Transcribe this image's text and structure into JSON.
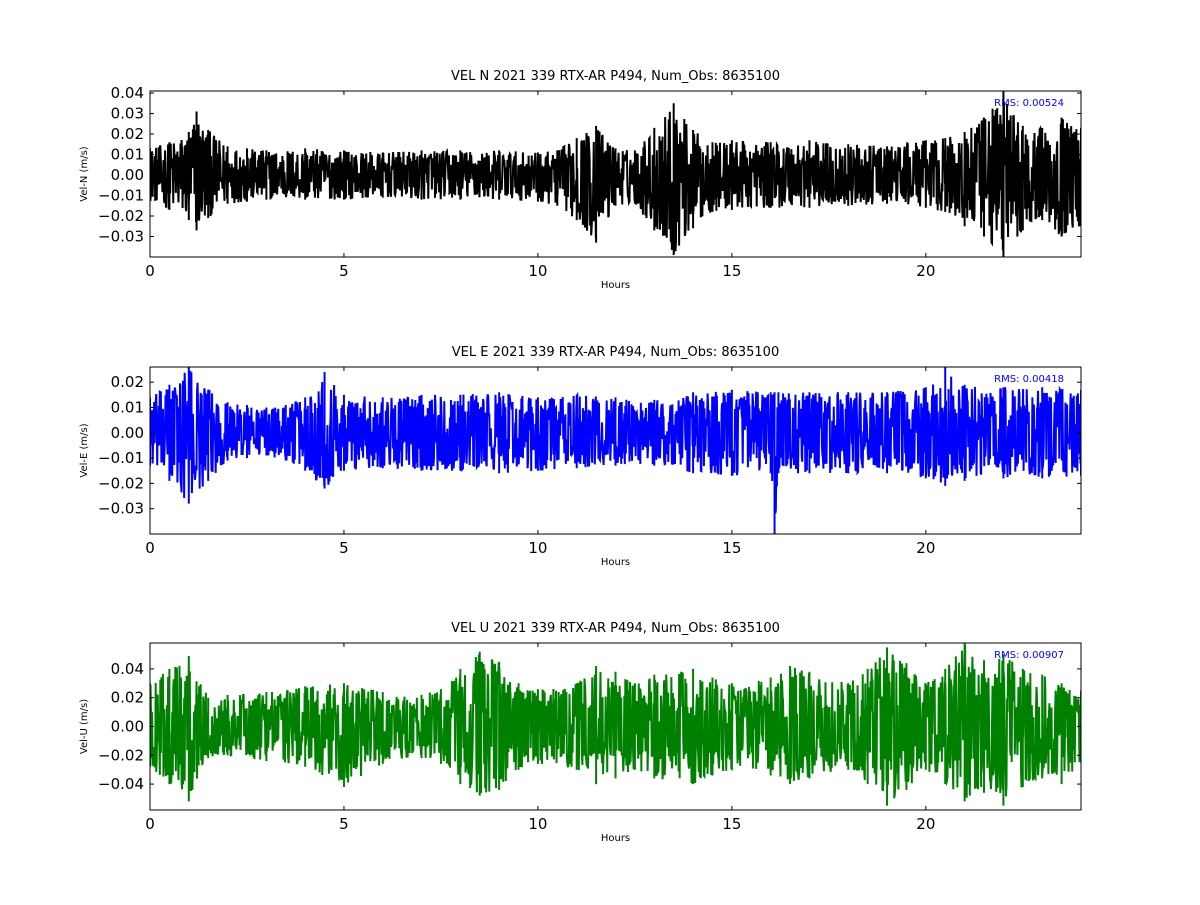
{
  "chart_data": [
    {
      "type": "line",
      "title": "VEL N 2021 339 RTX-AR  P494, Num_Obs: 8635100",
      "xlabel": "Hours",
      "ylabel": "Vel-N (m/s)",
      "xlim": [
        0,
        24
      ],
      "ylim": [
        -0.04,
        0.041
      ],
      "xticks": [
        "0",
        "5",
        "10",
        "15",
        "20"
      ],
      "yticks": [
        "-0.03",
        "-0.02",
        "-0.01",
        "0.00",
        "0.01",
        "0.02",
        "0.03",
        "0.04"
      ],
      "annotation": "RMS:  0.00524",
      "annotation_color": "#0000ff",
      "color": "#000000",
      "grid": false,
      "x": [
        0,
        0.5,
        1,
        1.2,
        1.5,
        2,
        2.5,
        3,
        4,
        5,
        6,
        7,
        8,
        9,
        10,
        10.5,
        11,
        11.5,
        12,
        12.5,
        13,
        13.5,
        14,
        14.5,
        15,
        16,
        17,
        18,
        19,
        20,
        20.5,
        21,
        21.5,
        22,
        22.5,
        23,
        23.5,
        24
      ],
      "upper": [
        0.013,
        0.016,
        0.021,
        0.031,
        0.022,
        0.014,
        0.013,
        0.012,
        0.013,
        0.012,
        0.011,
        0.012,
        0.012,
        0.012,
        0.011,
        0.012,
        0.018,
        0.024,
        0.013,
        0.012,
        0.023,
        0.035,
        0.022,
        0.016,
        0.017,
        0.016,
        0.017,
        0.015,
        0.014,
        0.017,
        0.018,
        0.021,
        0.028,
        0.041,
        0.024,
        0.023,
        0.028,
        0.023
      ],
      "lower": [
        -0.012,
        -0.017,
        -0.022,
        -0.027,
        -0.021,
        -0.014,
        -0.013,
        -0.012,
        -0.012,
        -0.012,
        -0.011,
        -0.012,
        -0.012,
        -0.012,
        -0.013,
        -0.015,
        -0.022,
        -0.033,
        -0.015,
        -0.014,
        -0.027,
        -0.039,
        -0.026,
        -0.018,
        -0.017,
        -0.016,
        -0.016,
        -0.015,
        -0.014,
        -0.016,
        -0.018,
        -0.025,
        -0.03,
        -0.04,
        -0.027,
        -0.022,
        -0.03,
        -0.025
      ]
    },
    {
      "type": "line",
      "title": "VEL E 2021 339 RTX-AR  P494, Num_Obs: 8635100",
      "xlabel": "Hours",
      "ylabel": "Vel-E (m/s)",
      "xlim": [
        0,
        24
      ],
      "ylim": [
        -0.04,
        0.026
      ],
      "xticks": [
        "0",
        "5",
        "10",
        "15",
        "20"
      ],
      "yticks": [
        "-0.03",
        "-0.02",
        "-0.01",
        "0.00",
        "0.01",
        "0.02"
      ],
      "annotation": "RMS:  0.00418",
      "annotation_color": "#0000ff",
      "color": "#0000ff",
      "grid": false,
      "x": [
        0,
        0.5,
        1,
        1.5,
        2,
        2.5,
        3,
        3.5,
        4,
        4.5,
        5,
        6,
        7,
        8,
        9,
        10,
        11,
        12,
        13,
        14,
        15,
        16,
        16.1,
        16.2,
        17,
        18,
        19,
        20,
        20.5,
        21,
        22,
        23,
        24
      ],
      "upper": [
        0.014,
        0.019,
        0.026,
        0.017,
        0.012,
        0.011,
        0.01,
        0.011,
        0.014,
        0.024,
        0.015,
        0.014,
        0.015,
        0.015,
        0.016,
        0.014,
        0.015,
        0.014,
        0.013,
        0.016,
        0.017,
        0.016,
        0.016,
        0.016,
        0.016,
        0.016,
        0.016,
        0.018,
        0.026,
        0.019,
        0.018,
        0.018,
        0.017
      ],
      "lower": [
        -0.013,
        -0.019,
        -0.028,
        -0.019,
        -0.011,
        -0.01,
        -0.009,
        -0.011,
        -0.015,
        -0.022,
        -0.015,
        -0.014,
        -0.015,
        -0.015,
        -0.016,
        -0.015,
        -0.014,
        -0.013,
        -0.013,
        -0.016,
        -0.017,
        -0.016,
        -0.04,
        -0.016,
        -0.016,
        -0.016,
        -0.016,
        -0.018,
        -0.021,
        -0.019,
        -0.018,
        -0.018,
        -0.017
      ]
    },
    {
      "type": "line",
      "title": "VEL U 2021 339 RTX-AR  P494, Num_Obs: 8635100",
      "xlabel": "Hours",
      "ylabel": "Vel-U (m/s)",
      "xlim": [
        0,
        24
      ],
      "ylim": [
        -0.058,
        0.058
      ],
      "xticks": [
        "0",
        "5",
        "10",
        "15",
        "20"
      ],
      "yticks": [
        "-0.04",
        "-0.02",
        "0.00",
        "0.02",
        "0.04"
      ],
      "annotation": "RMS:  0.00907",
      "annotation_color": "#0000ff",
      "color": "#008000",
      "grid": false,
      "x": [
        0,
        0.5,
        1,
        1.5,
        2,
        3,
        4,
        5,
        6,
        7,
        7.5,
        8,
        8.5,
        9,
        9.5,
        10,
        11,
        11.5,
        12,
        12.5,
        13,
        14,
        14.5,
        15,
        16,
        16.5,
        17,
        18,
        18.5,
        19,
        19.5,
        20,
        20.5,
        21,
        21.5,
        22,
        22.5,
        23,
        23.5,
        24
      ],
      "upper": [
        0.03,
        0.04,
        0.049,
        0.02,
        0.022,
        0.024,
        0.028,
        0.03,
        0.024,
        0.022,
        0.026,
        0.04,
        0.052,
        0.045,
        0.03,
        0.026,
        0.03,
        0.042,
        0.038,
        0.03,
        0.036,
        0.04,
        0.034,
        0.03,
        0.034,
        0.042,
        0.038,
        0.03,
        0.04,
        0.055,
        0.044,
        0.03,
        0.04,
        0.058,
        0.046,
        0.05,
        0.04,
        0.036,
        0.03,
        0.025
      ],
      "lower": [
        -0.028,
        -0.04,
        -0.052,
        -0.022,
        -0.02,
        -0.024,
        -0.028,
        -0.042,
        -0.026,
        -0.022,
        -0.026,
        -0.04,
        -0.048,
        -0.044,
        -0.03,
        -0.026,
        -0.03,
        -0.04,
        -0.036,
        -0.03,
        -0.036,
        -0.04,
        -0.034,
        -0.03,
        -0.034,
        -0.04,
        -0.036,
        -0.03,
        -0.04,
        -0.055,
        -0.044,
        -0.03,
        -0.04,
        -0.052,
        -0.046,
        -0.055,
        -0.042,
        -0.036,
        -0.04,
        -0.025
      ]
    }
  ]
}
